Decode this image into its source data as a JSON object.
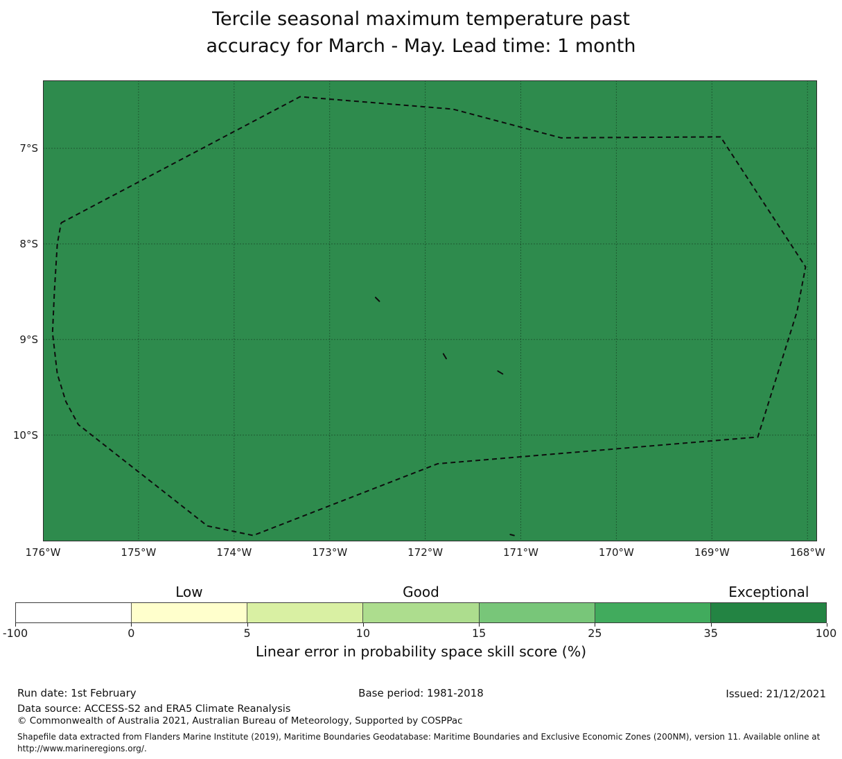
{
  "title": {
    "line1": "Tercile seasonal maximum temperature past",
    "line2": "accuracy for March - May. Lead time: 1 month"
  },
  "chart_data": {
    "type": "heatmap",
    "title": "Tercile seasonal maximum temperature past accuracy for March - May. Lead time: 1 month",
    "xlabel": "",
    "ylabel": "",
    "axis_ranges": {
      "lon_west": -176.0,
      "lon_east": -167.9,
      "lat_north_s": 6.29,
      "lat_south_s": 11.11
    },
    "grid": true,
    "gridline_lons": [
      -176,
      -175,
      -174,
      -173,
      -172,
      -171,
      -170,
      -169,
      -168
    ],
    "gridline_lats_s": [
      7,
      8,
      9,
      10
    ],
    "lon_ticks": [
      {
        "label": "176°W",
        "lon": -176
      },
      {
        "label": "175°W",
        "lon": -175
      },
      {
        "label": "174°W",
        "lon": -174
      },
      {
        "label": "173°W",
        "lon": -173
      },
      {
        "label": "172°W",
        "lon": -172
      },
      {
        "label": "171°W",
        "lon": -171
      },
      {
        "label": "170°W",
        "lon": -170
      },
      {
        "label": "169°W",
        "lon": -169
      },
      {
        "label": "168°W",
        "lon": -168
      }
    ],
    "lat_ticks": [
      {
        "label": "7°S",
        "lat_s": 7
      },
      {
        "label": "8°S",
        "lat_s": 8
      },
      {
        "label": "9°S",
        "lat_s": 9
      },
      {
        "label": "10°S",
        "lat_s": 10
      }
    ],
    "region_fill_color": "#2e8b4d",
    "eez_boundary_lonlat_s": [
      [
        -175.81,
        7.78
      ],
      [
        -173.31,
        6.46
      ],
      [
        -171.71,
        6.59
      ],
      [
        -170.58,
        6.89
      ],
      [
        -168.91,
        6.88
      ],
      [
        -168.02,
        8.24
      ],
      [
        -168.11,
        8.71
      ],
      [
        -168.52,
        10.02
      ],
      [
        -171.87,
        10.3
      ],
      [
        -173.8,
        11.05
      ],
      [
        -174.28,
        10.95
      ],
      [
        -175.63,
        9.89
      ],
      [
        -175.76,
        9.65
      ],
      [
        -175.85,
        9.36
      ],
      [
        -175.9,
        8.93
      ],
      [
        -175.88,
        8.49
      ],
      [
        -175.85,
        8.0
      ],
      [
        -175.81,
        7.78
      ]
    ],
    "island_marks_lonlat_s": [
      [
        [
          -172.52,
          8.56
        ],
        [
          -172.48,
          8.6
        ]
      ],
      [
        [
          -171.81,
          9.15
        ],
        [
          -171.78,
          9.2
        ]
      ],
      [
        [
          -171.24,
          9.33
        ],
        [
          -171.19,
          9.36
        ]
      ],
      [
        [
          -171.11,
          11.04
        ],
        [
          -171.07,
          11.05
        ]
      ]
    ],
    "colorbar": {
      "title": "Linear error in probability space skill score (%)",
      "category_labels": [
        {
          "label": "Low",
          "segment_index": 1
        },
        {
          "label": "Good",
          "segment_index": 3
        },
        {
          "label": "Exceptional",
          "segment_index": 6
        }
      ],
      "segments": [
        {
          "from": -100,
          "to": 0,
          "color": "#ffffff"
        },
        {
          "from": 0,
          "to": 5,
          "color": "#ffffcc"
        },
        {
          "from": 5,
          "to": 10,
          "color": "#d9f0a3"
        },
        {
          "from": 10,
          "to": 15,
          "color": "#addd8e"
        },
        {
          "from": 15,
          "to": 25,
          "color": "#78c679"
        },
        {
          "from": 25,
          "to": 35,
          "color": "#41ab5d"
        },
        {
          "from": 35,
          "to": 100,
          "color": "#238443"
        }
      ],
      "tick_labels": [
        "-100",
        "0",
        "5",
        "10",
        "15",
        "25",
        "35",
        "100"
      ]
    }
  },
  "footer": {
    "run_date": "Run date: 1st February",
    "base_period": "Base period: 1981-2018",
    "issued": "Issued: 21/12/2021",
    "data_source": "Data source: ACCESS-S2 and ERA5 Climate Reanalysis",
    "copyright": "© Commonwealth of Australia 2021, Australian Bureau of Meteorology, Supported by COSPPac",
    "shapefile_note": "Shapefile data extracted from Flanders Marine Institute (2019), Maritime Boundaries Geodatabase: Maritime Boundaries and Exclusive Economic Zones (200NM), version 11. Available online at http://www.marineregions.org/."
  }
}
